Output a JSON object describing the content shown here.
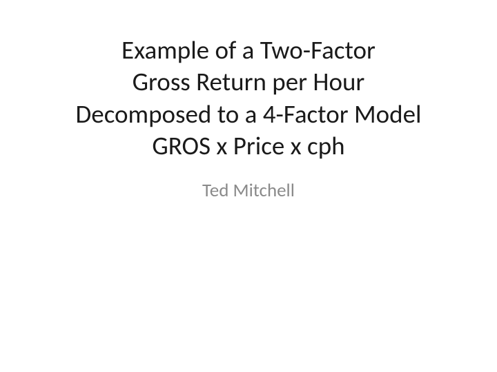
{
  "slide": {
    "title_line1": "Example of a Two-Factor",
    "title_line2": "Gross Return per Hour",
    "title_line3": "Decomposed to a 4-Factor Model",
    "title_line4": "GROS x Price x cph",
    "subtitle": "Ted Mitchell"
  },
  "styling": {
    "background_color": "#ffffff",
    "title_color": "#1a1a1a",
    "subtitle_color": "#8a8a8a",
    "title_fontsize": 37,
    "subtitle_fontsize": 27,
    "font_family": "Calibri"
  }
}
